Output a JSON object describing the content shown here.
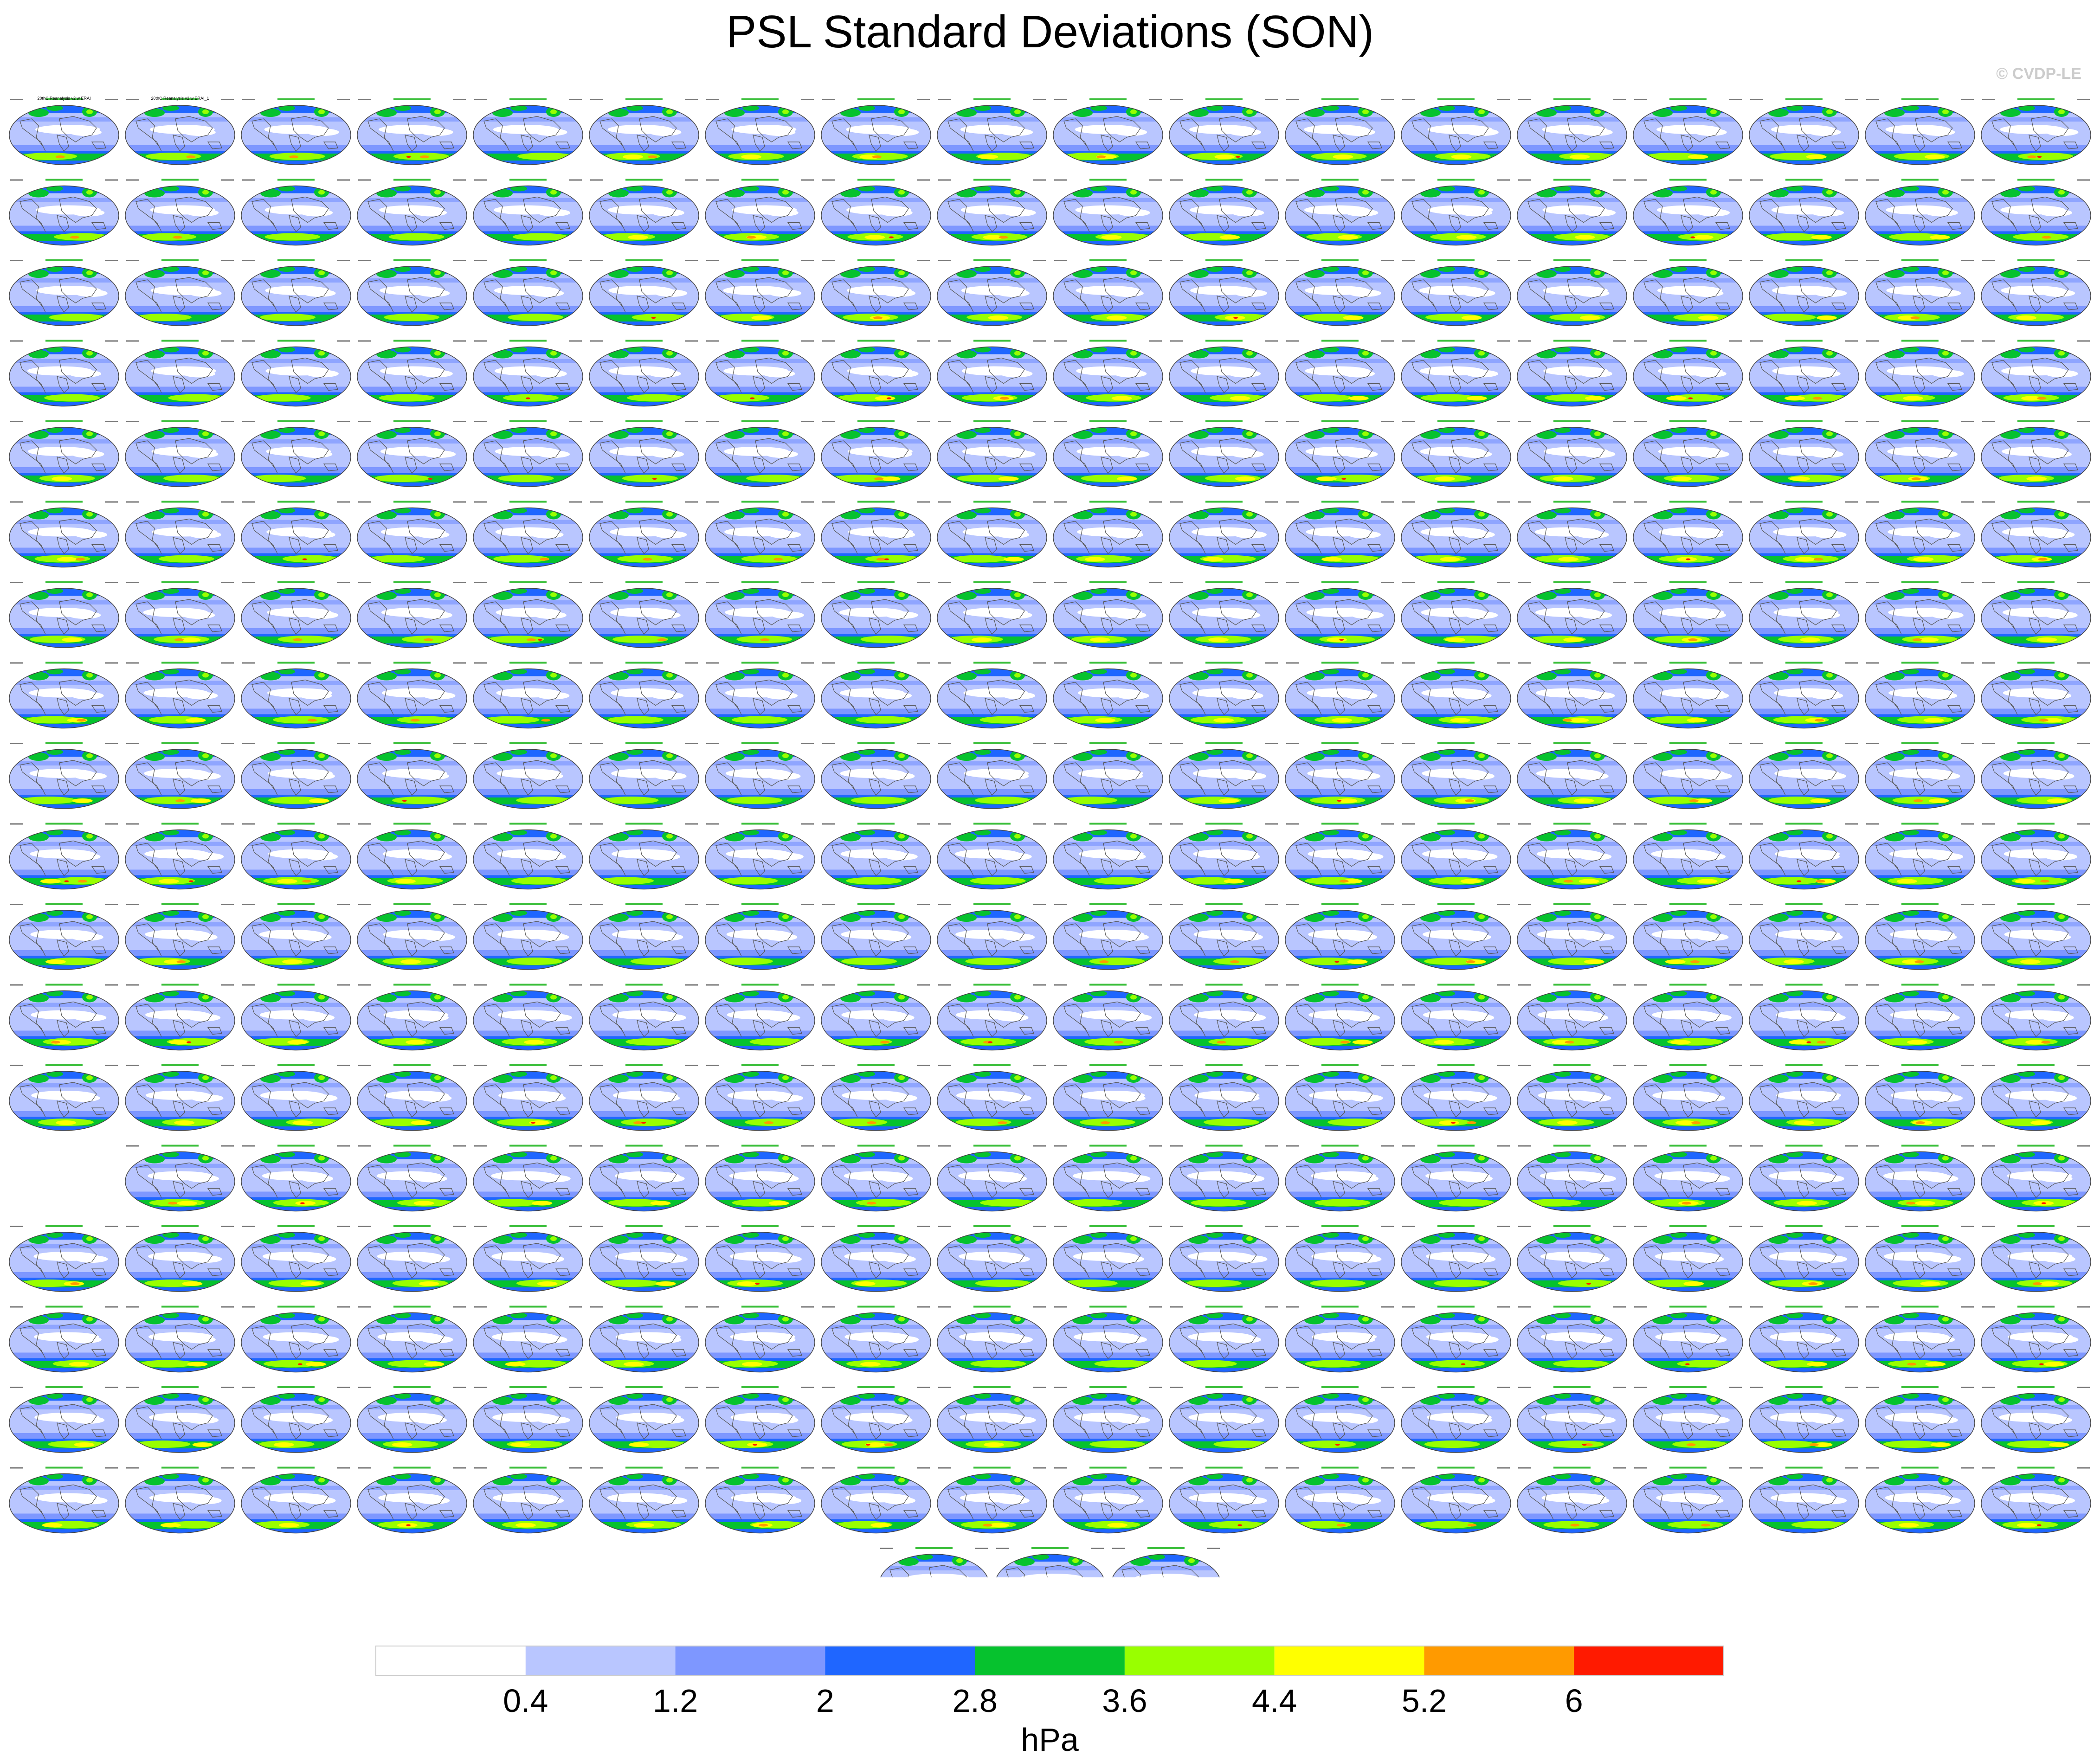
{
  "title": "PSL Standard Deviations (SON)",
  "watermark": "© CVDP-LE",
  "colors": {
    "map_background": "#b9c6ff",
    "pole_band": "#1f66ff",
    "ring": "#06c22e",
    "coast": "#555555"
  },
  "chart_data": {
    "type": "heatmap",
    "title": "PSL Standard Deviations (SON)",
    "units": "hPa",
    "layout": {
      "panel_rows": [
        18,
        18,
        18,
        18,
        18,
        18,
        18,
        18,
        18,
        18,
        18,
        18,
        18,
        17,
        18,
        18,
        18,
        18,
        3
      ],
      "panel_count": 326
    },
    "colorbar": {
      "levels": [
        0.4,
        0.8,
        1.2,
        1.6,
        2,
        2.4,
        2.8,
        3.2,
        3.6,
        4,
        4.4,
        4.8,
        5.2,
        5.6,
        6
      ],
      "tick_labels": [
        "0.4",
        "1.2",
        "2",
        "2.8",
        "3.6",
        "4.4",
        "5.2",
        "6"
      ],
      "colors": [
        "#ffffff",
        "#b9c6ff",
        "#7e97ff",
        "#1f66ff",
        "#06c22e",
        "#99ff00",
        "#ffff00",
        "#ff9a00",
        "#ff1a00"
      ],
      "label": "hPa"
    },
    "panel_titles": [
      "20thC Reanalysis v2 w ERAI",
      "20thC Reanalysis v2 w ERAI_1"
    ]
  }
}
